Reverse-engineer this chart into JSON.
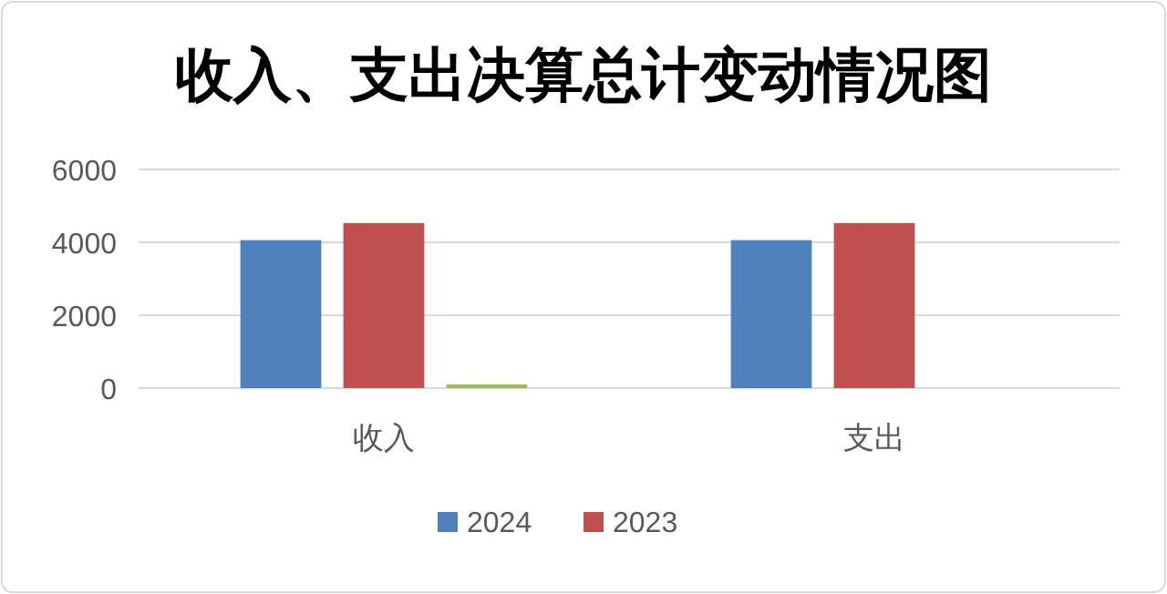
{
  "chart_data": {
    "type": "bar",
    "title": "收入、支出决算总计变动情况图",
    "categories": [
      "收入",
      "支出"
    ],
    "series": [
      {
        "name": "2024",
        "color": "#4f81bd",
        "values": [
          4060,
          4060
        ]
      },
      {
        "name": "2023",
        "color": "#c0504d",
        "values": [
          4530,
          4530
        ]
      },
      {
        "color": "#9bbb59",
        "values": [
          100,
          null
        ]
      }
    ],
    "ylim": [
      0,
      6000
    ],
    "yticks": [
      0,
      2000,
      4000,
      6000
    ],
    "grid": "y",
    "legend": "bottom"
  }
}
